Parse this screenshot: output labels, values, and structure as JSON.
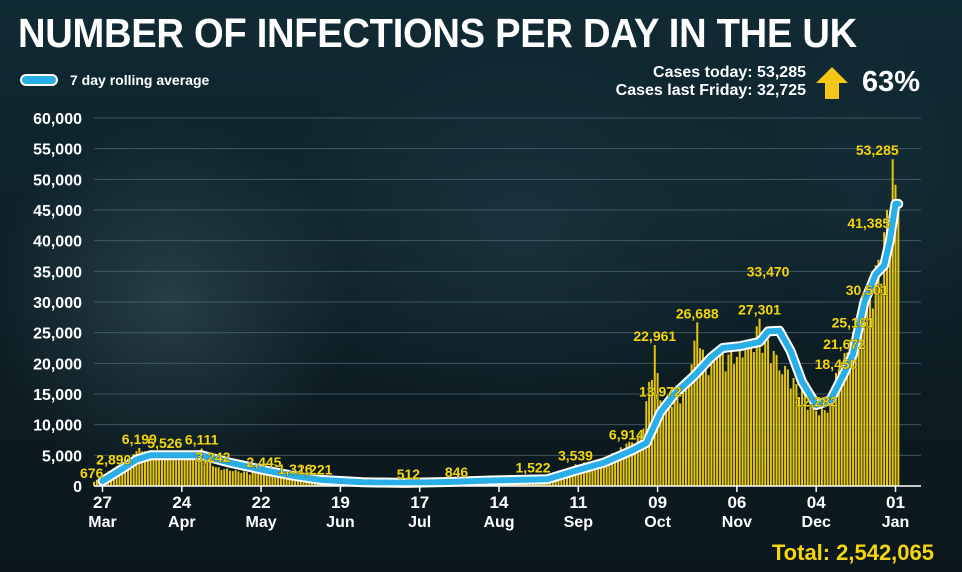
{
  "title": "NUMBER OF INFECTIONS PER DAY IN THE UK",
  "legend": {
    "label": "7 day rolling average"
  },
  "stats": {
    "today": "Cases today: 53,285",
    "last_friday": "Cases last Friday: 32,725",
    "change": "63%",
    "arrow_icon": "up-arrow-icon"
  },
  "total": {
    "label": "Total:",
    "value": "2,542,065"
  },
  "colors": {
    "bar": "#e6c50f",
    "line": "#2aaee8",
    "label": "#f5d60b",
    "text": "#ffffff",
    "grid": "#4a6570"
  },
  "chart_data": {
    "type": "bar",
    "ylim": [
      0,
      60000
    ],
    "yticks": [
      0,
      5000,
      10000,
      15000,
      20000,
      25000,
      30000,
      35000,
      40000,
      45000,
      50000,
      55000,
      60000
    ],
    "ytick_labels": [
      "0",
      "5,000",
      "10,000",
      "15,000",
      "20,000",
      "25,000",
      "30,000",
      "35,000",
      "40,000",
      "45,000",
      "50,000",
      "55,000",
      "60,000"
    ],
    "day_span": [
      0,
      292
    ],
    "xticks": [
      {
        "day": 3,
        "day_label": "27",
        "month": "Mar"
      },
      {
        "day": 31,
        "day_label": "24",
        "month": "Apr"
      },
      {
        "day": 59,
        "day_label": "22",
        "month": "May"
      },
      {
        "day": 87,
        "day_label": "19",
        "month": "Jun"
      },
      {
        "day": 115,
        "day_label": "17",
        "month": "Jul"
      },
      {
        "day": 143,
        "day_label": "14",
        "month": "Aug"
      },
      {
        "day": 171,
        "day_label": "11",
        "month": "Sep"
      },
      {
        "day": 199,
        "day_label": "09",
        "month": "Oct"
      },
      {
        "day": 227,
        "day_label": "06",
        "month": "Nov"
      },
      {
        "day": 255,
        "day_label": "04",
        "month": "Dec"
      },
      {
        "day": 283,
        "day_label": "01",
        "month": "Jan"
      }
    ],
    "bar_anchors": [
      [
        0,
        676
      ],
      [
        3,
        1800
      ],
      [
        7,
        2890
      ],
      [
        12,
        4500
      ],
      [
        16,
        6199
      ],
      [
        20,
        5200
      ],
      [
        25,
        5526
      ],
      [
        30,
        4900
      ],
      [
        35,
        5000
      ],
      [
        38,
        6111
      ],
      [
        42,
        3242
      ],
      [
        50,
        2600
      ],
      [
        56,
        2200
      ],
      [
        60,
        2445
      ],
      [
        66,
        1800
      ],
      [
        71,
        1326
      ],
      [
        78,
        1221
      ],
      [
        85,
        900
      ],
      [
        95,
        700
      ],
      [
        105,
        600
      ],
      [
        111,
        512
      ],
      [
        118,
        650
      ],
      [
        128,
        846
      ],
      [
        135,
        750
      ],
      [
        145,
        1100
      ],
      [
        155,
        1522
      ],
      [
        162,
        1700
      ],
      [
        170,
        3539
      ],
      [
        180,
        4500
      ],
      [
        188,
        6914
      ],
      [
        193,
        8500
      ],
      [
        198,
        22961
      ],
      [
        200,
        13972
      ],
      [
        205,
        15000
      ],
      [
        210,
        18000
      ],
      [
        213,
        26688
      ],
      [
        216,
        20000
      ],
      [
        220,
        22000
      ],
      [
        225,
        22500
      ],
      [
        230,
        23000
      ],
      [
        235,
        27301
      ],
      [
        240,
        22000
      ],
      [
        245,
        19000
      ],
      [
        250,
        16000
      ],
      [
        255,
        12282
      ],
      [
        260,
        14000
      ],
      [
        262,
        18450
      ],
      [
        265,
        21672
      ],
      [
        268,
        25161
      ],
      [
        273,
        30501
      ],
      [
        276,
        36000
      ],
      [
        279,
        41385
      ],
      [
        282,
        53285
      ],
      [
        284,
        45000
      ]
    ],
    "series": [
      {
        "name": "7 day rolling average",
        "points": [
          [
            3,
            800
          ],
          [
            10,
            2800
          ],
          [
            15,
            4300
          ],
          [
            20,
            5000
          ],
          [
            30,
            5000
          ],
          [
            38,
            5000
          ],
          [
            48,
            3800
          ],
          [
            60,
            2600
          ],
          [
            70,
            1700
          ],
          [
            80,
            1000
          ],
          [
            95,
            600
          ],
          [
            110,
            500
          ],
          [
            125,
            650
          ],
          [
            140,
            900
          ],
          [
            150,
            1000
          ],
          [
            160,
            1100
          ],
          [
            170,
            2500
          ],
          [
            180,
            3800
          ],
          [
            190,
            5800
          ],
          [
            195,
            7000
          ],
          [
            200,
            12000
          ],
          [
            205,
            15000
          ],
          [
            212,
            18000
          ],
          [
            218,
            21000
          ],
          [
            222,
            22500
          ],
          [
            228,
            22800
          ],
          [
            235,
            23500
          ],
          [
            238,
            25200
          ],
          [
            242,
            25300
          ],
          [
            246,
            22000
          ],
          [
            250,
            17000
          ],
          [
            255,
            13200
          ],
          [
            260,
            14000
          ],
          [
            265,
            18500
          ],
          [
            268,
            21500
          ],
          [
            272,
            30000
          ],
          [
            276,
            34500
          ],
          [
            279,
            36000
          ],
          [
            281,
            40000
          ],
          [
            283,
            46000
          ],
          [
            284,
            46000
          ]
        ]
      }
    ],
    "data_labels": [
      {
        "day": 0,
        "value": 676,
        "text": "676"
      },
      {
        "day": 7,
        "value": 2890,
        "text": "2,890"
      },
      {
        "day": 16,
        "value": 6199,
        "text": "6,199"
      },
      {
        "day": 25,
        "value": 5526,
        "text": "5,526"
      },
      {
        "day": 38,
        "value": 6111,
        "text": "6,111"
      },
      {
        "day": 42,
        "value": 3242,
        "text": "3,242"
      },
      {
        "day": 60,
        "value": 2445,
        "text": "2,445"
      },
      {
        "day": 71,
        "value": 1326,
        "text": "1,326"
      },
      {
        "day": 78,
        "value": 1221,
        "text": "1,221"
      },
      {
        "day": 111,
        "value": 512,
        "text": "512"
      },
      {
        "day": 128,
        "value": 846,
        "text": "846"
      },
      {
        "day": 155,
        "value": 1522,
        "text": "1,522"
      },
      {
        "day": 170,
        "value": 3539,
        "text": "3,539"
      },
      {
        "day": 188,
        "value": 6914,
        "text": "6,914"
      },
      {
        "day": 198,
        "value": 22961,
        "text": "22,961"
      },
      {
        "day": 200,
        "value": 13972,
        "text": "13,972"
      },
      {
        "day": 213,
        "value": 26688,
        "text": "26,688"
      },
      {
        "day": 238,
        "value": 33470,
        "text": "33,470"
      },
      {
        "day": 235,
        "value": 27301,
        "text": "27,301"
      },
      {
        "day": 255,
        "value": 12282,
        "text": "12,282"
      },
      {
        "day": 262,
        "value": 18450,
        "text": "18,450"
      },
      {
        "day": 265,
        "value": 21672,
        "text": "21,672"
      },
      {
        "day": 268,
        "value": 25161,
        "text": "25,161"
      },
      {
        "day": 273,
        "value": 30501,
        "text": "30,501"
      },
      {
        "day": 279,
        "value": 41385,
        "text": "41,385"
      },
      {
        "day": 282,
        "value": 53285,
        "text": "53,285"
      }
    ]
  }
}
